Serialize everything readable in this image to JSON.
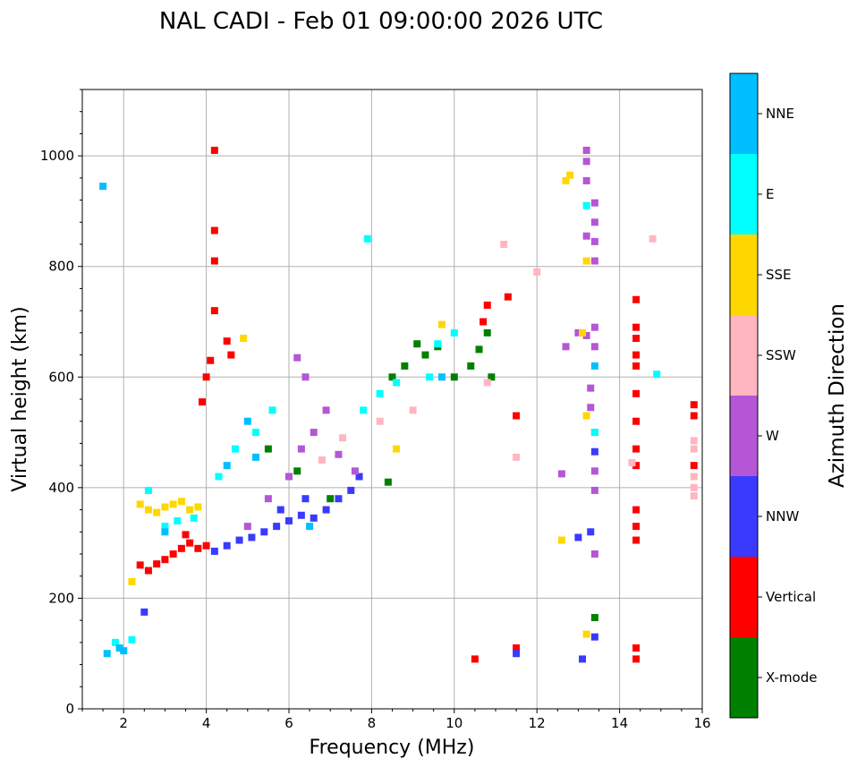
{
  "chart_data": {
    "type": "scatter",
    "title": "NAL CADI - Feb 01 09:00:00 2026 UTC",
    "xlabel": "Frequency (MHz)",
    "ylabel": "Virtual height (km)",
    "xlim": [
      1,
      16
    ],
    "ylim": [
      0,
      1120
    ],
    "xticks": [
      2,
      4,
      6,
      8,
      10,
      12,
      14,
      16
    ],
    "yticks": [
      0,
      200,
      400,
      600,
      800,
      1000
    ],
    "grid": true,
    "colorbar": {
      "label": "Azimuth Direction",
      "categories": [
        {
          "name": "X-mode",
          "color": "#008000"
        },
        {
          "name": "Vertical",
          "color": "#ff0000"
        },
        {
          "name": "NNW",
          "color": "#3a3aff"
        },
        {
          "name": "W",
          "color": "#b556d6"
        },
        {
          "name": "SSW",
          "color": "#ffb6c1"
        },
        {
          "name": "SSE",
          "color": "#ffd700"
        },
        {
          "name": "E",
          "color": "#00ffff"
        },
        {
          "name": "NNE",
          "color": "#00bfff"
        }
      ]
    },
    "series": [
      {
        "name": "Vertical",
        "points": [
          [
            2.4,
            260
          ],
          [
            2.6,
            250
          ],
          [
            2.8,
            262
          ],
          [
            3.0,
            270
          ],
          [
            3.2,
            280
          ],
          [
            3.4,
            290
          ],
          [
            3.6,
            300
          ],
          [
            3.8,
            290
          ],
          [
            4.0,
            295
          ],
          [
            3.5,
            315
          ],
          [
            3.9,
            555
          ],
          [
            4.0,
            600
          ],
          [
            4.1,
            630
          ],
          [
            4.2,
            720
          ],
          [
            4.2,
            810
          ],
          [
            4.2,
            865
          ],
          [
            4.2,
            1010
          ],
          [
            4.5,
            665
          ],
          [
            4.6,
            640
          ],
          [
            10.7,
            700
          ],
          [
            10.8,
            730
          ],
          [
            11.3,
            745
          ],
          [
            11.5,
            530
          ],
          [
            11.5,
            110
          ],
          [
            10.5,
            90
          ],
          [
            14.4,
            740
          ],
          [
            14.4,
            690
          ],
          [
            14.4,
            670
          ],
          [
            14.4,
            640
          ],
          [
            14.4,
            620
          ],
          [
            14.4,
            570
          ],
          [
            14.4,
            520
          ],
          [
            14.4,
            470
          ],
          [
            14.4,
            440
          ],
          [
            14.4,
            360
          ],
          [
            14.4,
            330
          ],
          [
            14.4,
            305
          ],
          [
            14.4,
            110
          ],
          [
            14.4,
            90
          ],
          [
            15.8,
            550
          ],
          [
            15.8,
            530
          ],
          [
            15.8,
            440
          ]
        ]
      },
      {
        "name": "X-mode",
        "points": [
          [
            8.5,
            600
          ],
          [
            8.8,
            620
          ],
          [
            9.1,
            660
          ],
          [
            9.3,
            640
          ],
          [
            9.6,
            655
          ],
          [
            10.0,
            600
          ],
          [
            10.4,
            620
          ],
          [
            10.6,
            650
          ],
          [
            10.8,
            680
          ],
          [
            10.9,
            600
          ],
          [
            13.4,
            165
          ],
          [
            13.4,
            500
          ],
          [
            5.5,
            470
          ],
          [
            6.2,
            430
          ],
          [
            7.0,
            380
          ],
          [
            8.4,
            410
          ]
        ]
      },
      {
        "name": "NNW",
        "points": [
          [
            4.2,
            285
          ],
          [
            4.5,
            295
          ],
          [
            4.8,
            305
          ],
          [
            5.1,
            310
          ],
          [
            5.4,
            320
          ],
          [
            5.7,
            330
          ],
          [
            6.0,
            340
          ],
          [
            6.3,
            350
          ],
          [
            6.6,
            345
          ],
          [
            6.9,
            360
          ],
          [
            7.2,
            380
          ],
          [
            7.5,
            395
          ],
          [
            7.7,
            420
          ],
          [
            5.8,
            360
          ],
          [
            6.4,
            380
          ],
          [
            2.5,
            175
          ],
          [
            13.0,
            310
          ],
          [
            13.3,
            320
          ],
          [
            13.4,
            130
          ],
          [
            13.1,
            90
          ],
          [
            13.4,
            465
          ],
          [
            11.5,
            100
          ]
        ]
      },
      {
        "name": "W",
        "points": [
          [
            5.0,
            330
          ],
          [
            5.5,
            380
          ],
          [
            6.0,
            420
          ],
          [
            6.3,
            470
          ],
          [
            6.6,
            500
          ],
          [
            6.9,
            540
          ],
          [
            7.2,
            460
          ],
          [
            7.6,
            430
          ],
          [
            6.4,
            600
          ],
          [
            6.2,
            635
          ],
          [
            13.2,
            1010
          ],
          [
            13.2,
            990
          ],
          [
            13.2,
            955
          ],
          [
            13.4,
            915
          ],
          [
            13.4,
            880
          ],
          [
            13.2,
            855
          ],
          [
            13.4,
            845
          ],
          [
            13.4,
            810
          ],
          [
            13.0,
            680
          ],
          [
            13.4,
            690
          ],
          [
            13.4,
            655
          ],
          [
            13.3,
            580
          ],
          [
            13.3,
            545
          ],
          [
            13.4,
            430
          ],
          [
            13.4,
            395
          ],
          [
            13.4,
            280
          ],
          [
            12.6,
            425
          ],
          [
            12.7,
            655
          ],
          [
            13.2,
            675
          ]
        ]
      },
      {
        "name": "SSW",
        "points": [
          [
            6.8,
            450
          ],
          [
            7.3,
            490
          ],
          [
            8.2,
            520
          ],
          [
            9.0,
            540
          ],
          [
            10.8,
            590
          ],
          [
            11.2,
            840
          ],
          [
            12.0,
            790
          ],
          [
            14.8,
            850
          ],
          [
            14.3,
            445
          ],
          [
            11.5,
            455
          ],
          [
            15.8,
            485
          ],
          [
            15.8,
            470
          ],
          [
            15.8,
            420
          ],
          [
            15.8,
            400
          ],
          [
            15.8,
            385
          ]
        ]
      },
      {
        "name": "SSE",
        "points": [
          [
            2.4,
            370
          ],
          [
            2.6,
            360
          ],
          [
            2.8,
            355
          ],
          [
            3.0,
            365
          ],
          [
            3.2,
            370
          ],
          [
            3.4,
            375
          ],
          [
            3.6,
            360
          ],
          [
            3.8,
            365
          ],
          [
            2.2,
            230
          ],
          [
            4.9,
            670
          ],
          [
            9.7,
            695
          ],
          [
            12.8,
            965
          ],
          [
            12.7,
            955
          ],
          [
            13.2,
            810
          ],
          [
            13.2,
            530
          ],
          [
            13.2,
            135
          ],
          [
            12.6,
            305
          ],
          [
            13.1,
            680
          ],
          [
            8.6,
            470
          ]
        ]
      },
      {
        "name": "E",
        "points": [
          [
            2.6,
            395
          ],
          [
            3.0,
            330
          ],
          [
            3.3,
            340
          ],
          [
            3.7,
            345
          ],
          [
            4.3,
            420
          ],
          [
            4.7,
            470
          ],
          [
            5.2,
            500
          ],
          [
            5.6,
            540
          ],
          [
            7.8,
            540
          ],
          [
            8.2,
            570
          ],
          [
            8.6,
            590
          ],
          [
            9.4,
            600
          ],
          [
            9.6,
            660
          ],
          [
            10.0,
            680
          ],
          [
            13.2,
            910
          ],
          [
            13.4,
            500
          ],
          [
            14.9,
            605
          ],
          [
            7.9,
            850
          ],
          [
            1.8,
            120
          ],
          [
            2.2,
            125
          ]
        ]
      },
      {
        "name": "NNE",
        "points": [
          [
            1.5,
            945
          ],
          [
            1.6,
            100
          ],
          [
            1.9,
            110
          ],
          [
            2.0,
            105
          ],
          [
            4.5,
            440
          ],
          [
            5.0,
            520
          ],
          [
            5.2,
            455
          ],
          [
            6.5,
            330
          ],
          [
            13.4,
            620
          ],
          [
            9.7,
            600
          ],
          [
            3.0,
            320
          ]
        ]
      }
    ]
  }
}
